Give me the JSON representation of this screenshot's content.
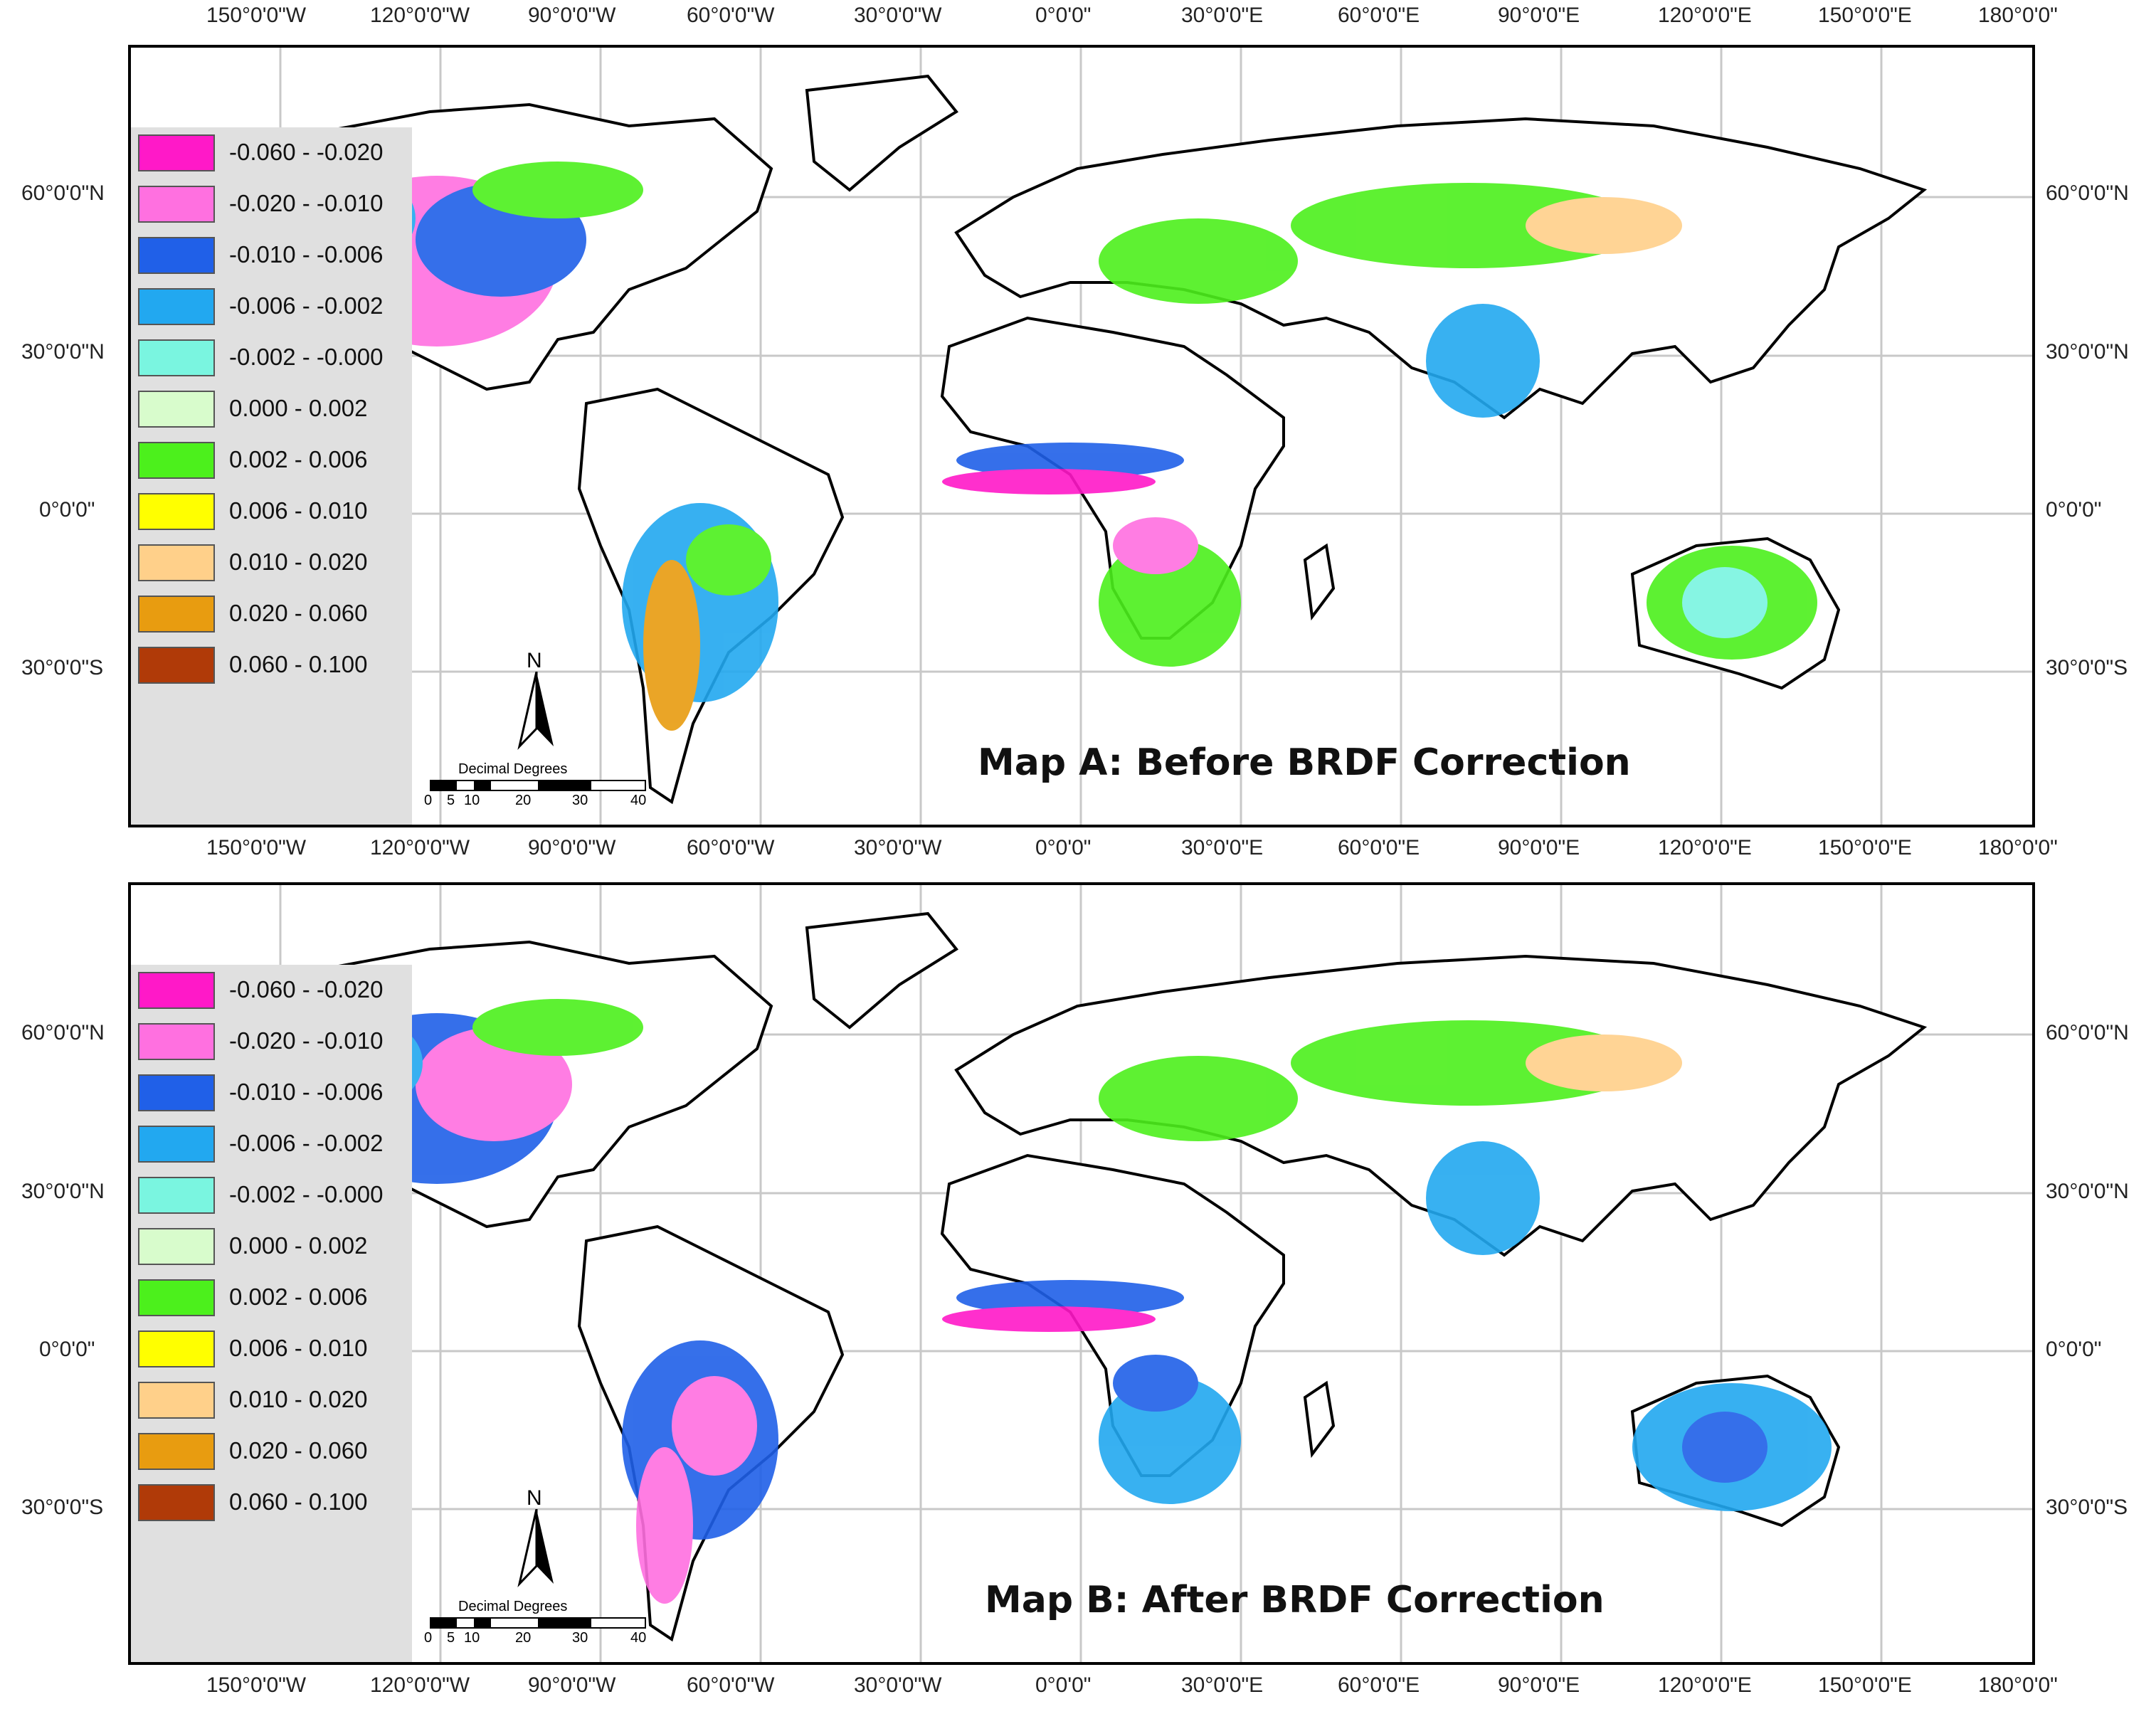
{
  "lon_ticks": [
    "150°0'0\"W",
    "120°0'0\"W",
    "90°0'0\"W",
    "60°0'0\"W",
    "30°0'0\"W",
    "0°0'0\"",
    "30°0'0\"E",
    "60°0'0\"E",
    "90°0'0\"E",
    "120°0'0\"E",
    "150°0'0\"E",
    "180°0'0\""
  ],
  "lat_ticks": [
    "60°0'0\"N",
    "30°0'0\"N",
    "0°0'0\"",
    "30°0'0\"S"
  ],
  "legend": {
    "items": [
      {
        "label": "-0.060 - -0.020",
        "color": "#ff19c8"
      },
      {
        "label": "-0.020 - -0.010",
        "color": "#ff70e0"
      },
      {
        "label": "-0.010 - -0.006",
        "color": "#2060e8"
      },
      {
        "label": "-0.006 - -0.002",
        "color": "#22a8f0"
      },
      {
        "label": "-0.002 - -0.000",
        "color": "#7af5e0"
      },
      {
        "label": "0.000 - 0.002",
        "color": "#d8fccc"
      },
      {
        "label": "0.002 - 0.006",
        "color": "#4cf01c"
      },
      {
        "label": "0.006 - 0.010",
        "color": "#ffff00"
      },
      {
        "label": "0.010 - 0.020",
        "color": "#ffd08a"
      },
      {
        "label": "0.020 - 0.060",
        "color": "#e89c10"
      },
      {
        "label": "0.060 - 0.100",
        "color": "#b03a08"
      }
    ]
  },
  "north_arrow": "N",
  "scale": {
    "title": "Decimal Degrees",
    "ticks": [
      "0",
      "5",
      "10",
      "20",
      "30",
      "40"
    ]
  },
  "maps": [
    {
      "title": "Map A: Before BRDF Correction"
    },
    {
      "title": "Map B: After BRDF Correction"
    }
  ]
}
